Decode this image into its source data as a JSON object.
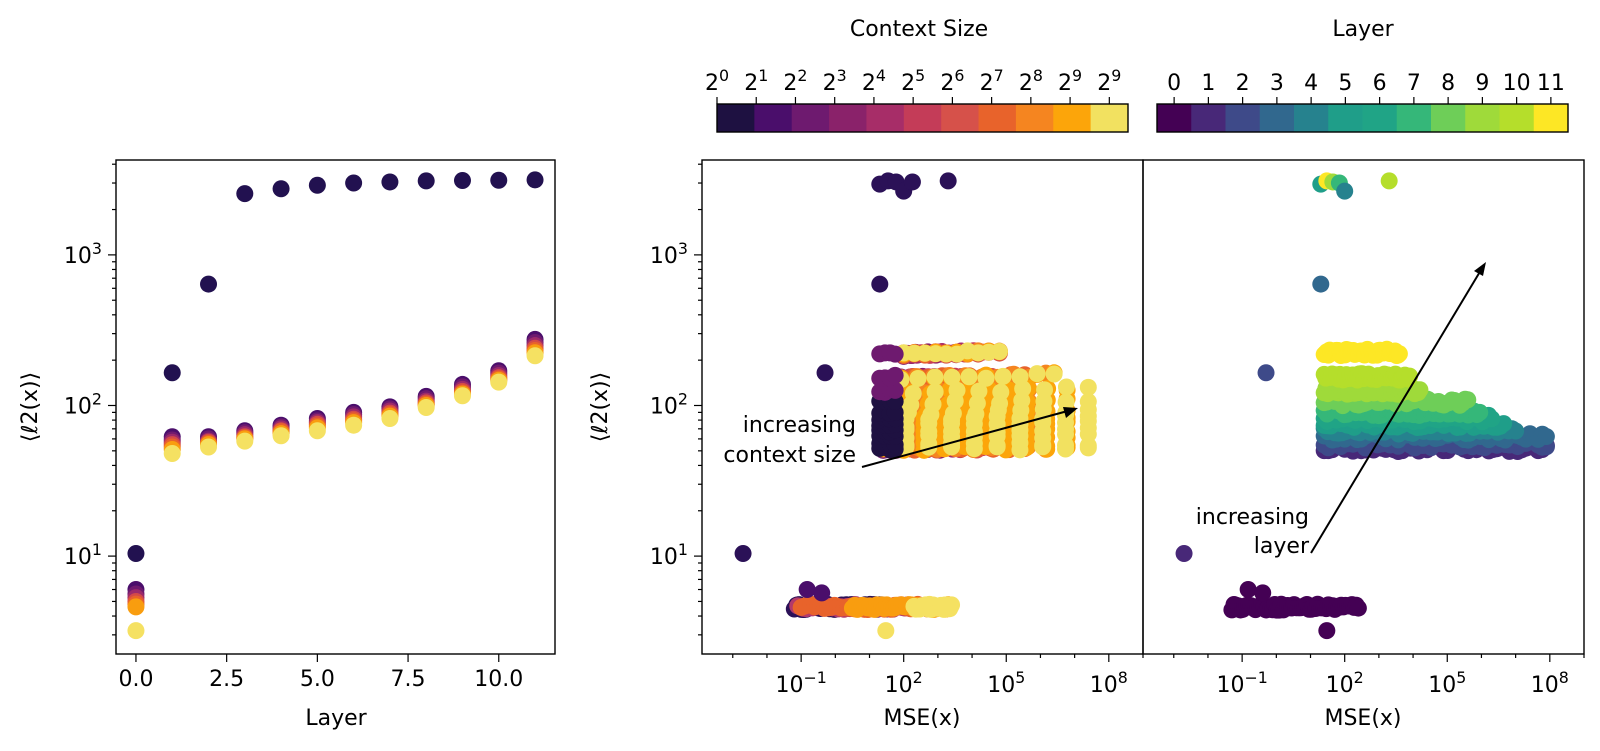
{
  "chart_data": [
    {
      "type": "scatter",
      "xlabel": "Layer",
      "ylabel": "⟨ℓ2(x)⟩",
      "xlim": [
        -0.55,
        11.55
      ],
      "ylim_log10": [
        0.35,
        3.63
      ],
      "xticks": [
        "0.0",
        "2.5",
        "5.0",
        "7.5",
        "10.0"
      ],
      "xtick_values": [
        0,
        2.5,
        5,
        7.5,
        10
      ],
      "yticks": [
        {
          "base": "10",
          "exp": "1",
          "log": 1
        },
        {
          "base": "10",
          "exp": "2",
          "log": 2
        },
        {
          "base": "10",
          "exp": "3",
          "log": 3
        }
      ],
      "series": [
        {
          "name": "outlier series (context 2^0)",
          "color": "#221150",
          "points": [
            [
              0,
              10.4
            ],
            [
              1,
              165
            ],
            [
              2,
              640
            ],
            [
              3,
              2550
            ],
            [
              4,
              2750
            ],
            [
              5,
              2900
            ],
            [
              6,
              3000
            ],
            [
              7,
              3050
            ],
            [
              8,
              3100
            ],
            [
              9,
              3120
            ],
            [
              10,
              3130
            ],
            [
              11,
              3150
            ]
          ]
        },
        {
          "name": "context 2^1",
          "color": "#4a0e6b",
          "points": [
            [
              0,
              6.0
            ],
            [
              1,
              62
            ],
            [
              2,
              62
            ],
            [
              3,
              68
            ],
            [
              4,
              74
            ],
            [
              5,
              82
            ],
            [
              6,
              90
            ],
            [
              7,
              98
            ],
            [
              8,
              115
            ],
            [
              9,
              138
            ],
            [
              10,
              170
            ],
            [
              11,
              275
            ]
          ]
        },
        {
          "name": "context 2^2",
          "color": "#6e1a6f",
          "points": [
            [
              0,
              5.6
            ],
            [
              1,
              59
            ],
            [
              2,
              60
            ],
            [
              3,
              66
            ],
            [
              4,
              72
            ],
            [
              5,
              79
            ],
            [
              6,
              87
            ],
            [
              7,
              95
            ],
            [
              8,
              111
            ],
            [
              9,
              133
            ],
            [
              10,
              164
            ],
            [
              11,
              262
            ]
          ]
        },
        {
          "name": "context 2^4",
          "color": "#9c2a6a",
          "points": [
            [
              0,
              5.3
            ],
            [
              1,
              57
            ],
            [
              2,
              58
            ],
            [
              3,
              64
            ],
            [
              4,
              70
            ],
            [
              5,
              77
            ],
            [
              6,
              84
            ],
            [
              7,
              92
            ],
            [
              8,
              107
            ],
            [
              9,
              128
            ],
            [
              10,
              158
            ],
            [
              11,
              250
            ]
          ]
        },
        {
          "name": "context 2^6",
          "color": "#d44a48",
          "points": [
            [
              0,
              5.0
            ],
            [
              1,
              55
            ],
            [
              2,
              57
            ],
            [
              3,
              62
            ],
            [
              4,
              68
            ],
            [
              5,
              75
            ],
            [
              6,
              81
            ],
            [
              7,
              89
            ],
            [
              8,
              104
            ],
            [
              9,
              124
            ],
            [
              10,
              153
            ],
            [
              11,
              240
            ]
          ]
        },
        {
          "name": "context 2^7",
          "color": "#e8632b",
          "points": [
            [
              0,
              4.8
            ],
            [
              1,
              53
            ],
            [
              2,
              56
            ],
            [
              3,
              61
            ],
            [
              4,
              67
            ],
            [
              5,
              73
            ],
            [
              6,
              79
            ],
            [
              7,
              87
            ],
            [
              8,
              102
            ],
            [
              9,
              121
            ],
            [
              10,
              150
            ],
            [
              11,
              232
            ]
          ]
        },
        {
          "name": "context 2^8",
          "color": "#f99d0f",
          "points": [
            [
              0,
              4.6
            ],
            [
              1,
              51
            ],
            [
              2,
              55
            ],
            [
              3,
              60
            ],
            [
              4,
              65
            ],
            [
              5,
              71
            ],
            [
              6,
              77
            ],
            [
              7,
              85
            ],
            [
              8,
              100
            ],
            [
              9,
              119
            ],
            [
              10,
              147
            ],
            [
              11,
              224
            ]
          ]
        },
        {
          "name": "context 2^9",
          "color": "#f5e162",
          "points": [
            [
              0,
              3.2
            ],
            [
              1,
              48
            ],
            [
              2,
              53
            ],
            [
              3,
              58
            ],
            [
              4,
              63
            ],
            [
              5,
              68
            ],
            [
              6,
              74
            ],
            [
              7,
              82
            ],
            [
              8,
              97
            ],
            [
              9,
              116
            ],
            [
              10,
              143
            ],
            [
              11,
              214
            ]
          ]
        }
      ]
    },
    {
      "type": "scatter",
      "xlabel": "MSE(x)",
      "ylabel": "⟨ℓ2(x)⟩",
      "color_by": "Context Size",
      "xlim_log10": [
        -3.9,
        9.0
      ],
      "ylim_log10": [
        0.35,
        3.63
      ],
      "xticks": [
        {
          "base": "10",
          "exp": "−1",
          "log": -1
        },
        {
          "base": "10",
          "exp": "2",
          "log": 2
        },
        {
          "base": "10",
          "exp": "5",
          "log": 5
        },
        {
          "base": "10",
          "exp": "8",
          "log": 8
        }
      ],
      "yticks": [
        {
          "base": "10",
          "exp": "1",
          "log": 1
        },
        {
          "base": "10",
          "exp": "2",
          "log": 2
        },
        {
          "base": "10",
          "exp": "3",
          "log": 3
        }
      ],
      "annotation": {
        "lines": [
          "increasing",
          "context size"
        ]
      },
      "outliers": [
        [
          0.002,
          10.4
        ],
        [
          0.5,
          165
        ],
        [
          20,
          640
        ],
        [
          20,
          2950
        ],
        [
          35,
          3100
        ],
        [
          60,
          3050
        ],
        [
          100,
          2650
        ],
        [
          180,
          3050
        ],
        [
          2000,
          3100
        ]
      ],
      "bands": [
        {
          "level": 0,
          "color": "#2b1157",
          "y": 4.6,
          "x_range_log10": [
            -1.2,
            1.5
          ]
        },
        {
          "level": 4,
          "color": "#b33a6a",
          "y": 4.6,
          "x_range_log10": [
            -1.1,
            2.2
          ]
        },
        {
          "level": 7,
          "color": "#e8632b",
          "y": 4.6,
          "x_range_log10": [
            -1.0,
            2.8
          ]
        },
        {
          "level": 8,
          "color": "#f99d0f",
          "y": 4.6,
          "x_range_log10": [
            0.5,
            3.3
          ]
        },
        {
          "level": 9,
          "color": "#f5e162",
          "y": 4.6,
          "x_range_log10": [
            2.3,
            3.4
          ]
        }
      ],
      "extra_points": [
        [
          0.15,
          6.0
        ],
        [
          0.4,
          5.7
        ],
        [
          30,
          3.2
        ]
      ],
      "top_cluster": [
        {
          "level": 3,
          "color": "#6a1c72",
          "y_range": [
            200,
            270
          ]
        },
        {
          "level": 9,
          "color": "#f5e162",
          "y": 220
        }
      ]
    },
    {
      "type": "scatter",
      "xlabel": "MSE(x)",
      "color_by": "Layer",
      "xlim_log10": [
        -3.9,
        9.0
      ],
      "ylim_log10": [
        0.35,
        3.63
      ],
      "xticks": [
        {
          "base": "10",
          "exp": "−1",
          "log": -1
        },
        {
          "base": "10",
          "exp": "2",
          "log": 2
        },
        {
          "base": "10",
          "exp": "5",
          "log": 5
        },
        {
          "base": "10",
          "exp": "8",
          "log": 8
        }
      ],
      "annotation": {
        "lines": [
          "increasing",
          "layer"
        ]
      },
      "layer_values": [
        0,
        1,
        2,
        3,
        4,
        5,
        6,
        7,
        8,
        9,
        10,
        11
      ],
      "layer_y_means": [
        4.6,
        52,
        55,
        62,
        68,
        75,
        82,
        90,
        105,
        125,
        155,
        225
      ]
    }
  ],
  "colorbars": [
    {
      "label": "Context Size",
      "ticks": [
        {
          "base": "2",
          "exp": "0"
        },
        {
          "base": "2",
          "exp": "1"
        },
        {
          "base": "2",
          "exp": "2"
        },
        {
          "base": "2",
          "exp": "3"
        },
        {
          "base": "2",
          "exp": "4"
        },
        {
          "base": "2",
          "exp": "5"
        },
        {
          "base": "2",
          "exp": "6"
        },
        {
          "base": "2",
          "exp": "7"
        },
        {
          "base": "2",
          "exp": "8"
        },
        {
          "base": "2",
          "exp": "9"
        },
        {
          "base": "2",
          "exp": "9"
        }
      ],
      "colors": [
        "#1e1141",
        "#4a0e6b",
        "#6e1a6f",
        "#8a226a",
        "#a72d68",
        "#c43c58",
        "#d6514a",
        "#e8632b",
        "#f58520",
        "#fca50a",
        "#f2e160"
      ]
    },
    {
      "label": "Layer",
      "ticks": [
        "0",
        "1",
        "2",
        "3",
        "4",
        "5",
        "6",
        "7",
        "8",
        "9",
        "10",
        "11"
      ],
      "colors": [
        "#440154",
        "#482878",
        "#3e4a89",
        "#31688e",
        "#26828e",
        "#1f9e89",
        "#20a486",
        "#35b779",
        "#6ece58",
        "#9fda3a",
        "#b5de2b",
        "#fde725"
      ]
    }
  ]
}
